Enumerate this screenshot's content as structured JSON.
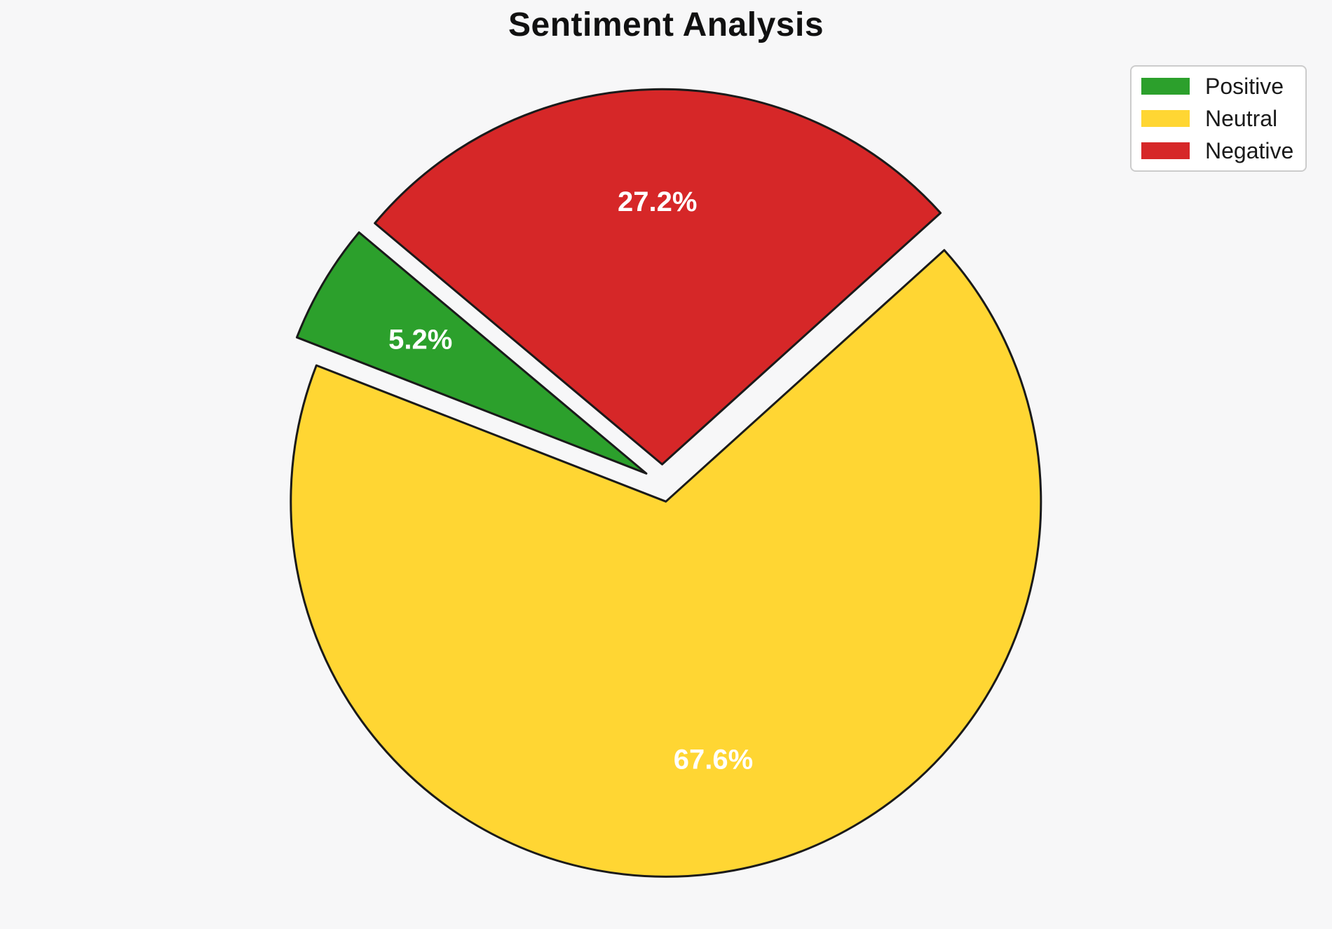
{
  "title": "Sentiment Analysis",
  "chart_data": {
    "type": "pie",
    "title": "Sentiment Analysis",
    "slices": [
      {
        "label": "Positive",
        "value": 5.2,
        "pct_label": "5.2%",
        "color": "#2CA02C"
      },
      {
        "label": "Neutral",
        "value": 67.6,
        "pct_label": "67.6%",
        "color": "#FFD633"
      },
      {
        "label": "Negative",
        "value": 27.2,
        "pct_label": "27.2%",
        "color": "#D62728"
      }
    ],
    "start_angle": 140,
    "counterclockwise": true,
    "explode": 0.05,
    "pct_distance": 0.7,
    "edge_color": "#1A1A1A",
    "pct_label_color": "#FFFFFF",
    "legend_position": "upper-right",
    "background_color": "#F7F7F8"
  }
}
